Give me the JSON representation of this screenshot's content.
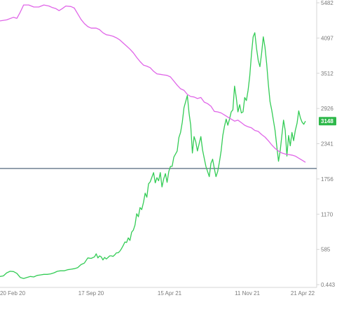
{
  "chart_data": {
    "type": "line",
    "title": "",
    "xlabel": "",
    "ylabel": "",
    "y_axis_position": "right",
    "ylim": [
      0.443,
      5482
    ],
    "y_ticks": [
      "5482",
      "4097",
      "3512",
      "2926",
      "2341",
      "1756",
      "1170",
      "585",
      "0.443"
    ],
    "x_ticks": [
      "20 Feb 20",
      "17 Sep 20",
      "15 Apr 21",
      "11 Nov 21",
      "21 Apr 22"
    ],
    "last_value_label": "3148",
    "reference_level": 2260,
    "colors": {
      "price_line": "#33cc55",
      "secondary_line": "#e066e8",
      "reference_line": "#6f8192",
      "badge": "#2eb84a",
      "axis": "#d6d6d6"
    },
    "series": [
      {
        "key": "price",
        "values": [
          [
            0,
            160
          ],
          [
            4,
            170
          ],
          [
            8,
            230
          ],
          [
            12,
            260
          ],
          [
            16,
            255
          ],
          [
            20,
            220
          ],
          [
            24,
            140
          ],
          [
            28,
            120
          ],
          [
            32,
            140
          ],
          [
            36,
            160
          ],
          [
            40,
            150
          ],
          [
            44,
            180
          ],
          [
            48,
            190
          ],
          [
            52,
            200
          ],
          [
            56,
            200
          ],
          [
            60,
            210
          ],
          [
            64,
            230
          ],
          [
            68,
            260
          ],
          [
            72,
            270
          ],
          [
            76,
            270
          ],
          [
            80,
            290
          ],
          [
            84,
            300
          ],
          [
            88,
            310
          ],
          [
            92,
            330
          ],
          [
            96,
            390
          ],
          [
            100,
            420
          ],
          [
            104,
            520
          ],
          [
            108,
            510
          ],
          [
            112,
            540
          ],
          [
            114,
            600
          ],
          [
            116,
            520
          ],
          [
            118,
            560
          ],
          [
            120,
            540
          ],
          [
            122,
            480
          ],
          [
            124,
            530
          ],
          [
            126,
            500
          ],
          [
            128,
            530
          ],
          [
            130,
            560
          ],
          [
            132,
            560
          ],
          [
            134,
            550
          ],
          [
            136,
            580
          ],
          [
            138,
            620
          ],
          [
            140,
            620
          ],
          [
            142,
            650
          ],
          [
            144,
            700
          ],
          [
            146,
            760
          ],
          [
            148,
            830
          ],
          [
            150,
            820
          ],
          [
            152,
            910
          ],
          [
            154,
            860
          ],
          [
            156,
            1020
          ],
          [
            158,
            1060
          ],
          [
            160,
            1160
          ],
          [
            162,
            1380
          ],
          [
            164,
            1320
          ],
          [
            166,
            1500
          ],
          [
            168,
            1460
          ],
          [
            170,
            1600
          ],
          [
            172,
            1780
          ],
          [
            174,
            1700
          ],
          [
            176,
            1960
          ],
          [
            178,
            2000
          ],
          [
            180,
            2090
          ],
          [
            182,
            2180
          ],
          [
            184,
            1980
          ],
          [
            186,
            2080
          ],
          [
            188,
            2020
          ],
          [
            190,
            2180
          ],
          [
            192,
            1900
          ],
          [
            194,
            2060
          ],
          [
            196,
            2160
          ],
          [
            198,
            1990
          ],
          [
            200,
            2200
          ],
          [
            202,
            2300
          ],
          [
            204,
            2300
          ],
          [
            206,
            2480
          ],
          [
            208,
            2540
          ],
          [
            210,
            2600
          ],
          [
            212,
            2860
          ],
          [
            214,
            2960
          ],
          [
            216,
            3160
          ],
          [
            218,
            3440
          ],
          [
            220,
            3560
          ],
          [
            222,
            3680
          ],
          [
            224,
            3340
          ],
          [
            226,
            3100
          ],
          [
            228,
            2560
          ],
          [
            230,
            2880
          ],
          [
            232,
            2780
          ],
          [
            234,
            2600
          ],
          [
            236,
            2740
          ],
          [
            238,
            2880
          ],
          [
            240,
            2620
          ],
          [
            242,
            2460
          ],
          [
            244,
            2300
          ],
          [
            246,
            2200
          ],
          [
            248,
            2100
          ],
          [
            250,
            2360
          ],
          [
            252,
            2440
          ],
          [
            254,
            2260
          ],
          [
            256,
            2100
          ],
          [
            258,
            2200
          ],
          [
            260,
            2380
          ],
          [
            262,
            2600
          ],
          [
            264,
            2900
          ],
          [
            266,
            3080
          ],
          [
            268,
            3220
          ],
          [
            270,
            3100
          ],
          [
            272,
            3220
          ],
          [
            274,
            3360
          ],
          [
            276,
            3400
          ],
          [
            278,
            3860
          ],
          [
            280,
            3640
          ],
          [
            282,
            3360
          ],
          [
            284,
            3500
          ],
          [
            286,
            3340
          ],
          [
            288,
            3360
          ],
          [
            290,
            3640
          ],
          [
            292,
            3580
          ],
          [
            294,
            3780
          ],
          [
            296,
            4060
          ],
          [
            298,
            4480
          ],
          [
            300,
            4820
          ],
          [
            302,
            4900
          ],
          [
            304,
            4600
          ],
          [
            306,
            4360
          ],
          [
            308,
            4240
          ],
          [
            310,
            4500
          ],
          [
            312,
            4820
          ],
          [
            314,
            4620
          ],
          [
            316,
            4300
          ],
          [
            318,
            3900
          ],
          [
            320,
            3560
          ],
          [
            322,
            3400
          ],
          [
            324,
            3200
          ],
          [
            326,
            3000
          ],
          [
            328,
            2700
          ],
          [
            330,
            2400
          ],
          [
            332,
            2600
          ],
          [
            334,
            2900
          ],
          [
            336,
            3200
          ],
          [
            338,
            3000
          ],
          [
            340,
            2500
          ],
          [
            342,
            2900
          ],
          [
            344,
            2700
          ],
          [
            346,
            2960
          ],
          [
            348,
            2800
          ],
          [
            350,
            3000
          ],
          [
            352,
            3140
          ],
          [
            354,
            3380
          ],
          [
            356,
            3240
          ],
          [
            358,
            3160
          ],
          [
            360,
            3120
          ],
          [
            362,
            3180
          ]
        ]
      },
      {
        "key": "secondary",
        "values": [
          [
            0,
            5130
          ],
          [
            8,
            5150
          ],
          [
            16,
            5200
          ],
          [
            20,
            5180
          ],
          [
            24,
            5300
          ],
          [
            28,
            5440
          ],
          [
            34,
            5440
          ],
          [
            40,
            5400
          ],
          [
            46,
            5400
          ],
          [
            52,
            5440
          ],
          [
            58,
            5420
          ],
          [
            62,
            5390
          ],
          [
            66,
            5370
          ],
          [
            70,
            5330
          ],
          [
            74,
            5370
          ],
          [
            78,
            5420
          ],
          [
            84,
            5410
          ],
          [
            88,
            5380
          ],
          [
            92,
            5270
          ],
          [
            96,
            5160
          ],
          [
            100,
            5080
          ],
          [
            104,
            5020
          ],
          [
            108,
            4990
          ],
          [
            114,
            4990
          ],
          [
            118,
            4960
          ],
          [
            122,
            4900
          ],
          [
            126,
            4860
          ],
          [
            130,
            4850
          ],
          [
            134,
            4830
          ],
          [
            138,
            4800
          ],
          [
            142,
            4760
          ],
          [
            146,
            4700
          ],
          [
            150,
            4640
          ],
          [
            154,
            4580
          ],
          [
            158,
            4510
          ],
          [
            162,
            4420
          ],
          [
            166,
            4340
          ],
          [
            170,
            4270
          ],
          [
            174,
            4250
          ],
          [
            178,
            4220
          ],
          [
            182,
            4150
          ],
          [
            186,
            4100
          ],
          [
            190,
            4090
          ],
          [
            194,
            4080
          ],
          [
            198,
            4070
          ],
          [
            202,
            4040
          ],
          [
            206,
            3960
          ],
          [
            210,
            3880
          ],
          [
            214,
            3810
          ],
          [
            218,
            3780
          ],
          [
            222,
            3700
          ],
          [
            226,
            3660
          ],
          [
            230,
            3650
          ],
          [
            234,
            3620
          ],
          [
            238,
            3640
          ],
          [
            242,
            3550
          ],
          [
            246,
            3520
          ],
          [
            250,
            3470
          ],
          [
            254,
            3370
          ],
          [
            258,
            3360
          ],
          [
            262,
            3340
          ],
          [
            266,
            3300
          ],
          [
            270,
            3260
          ],
          [
            274,
            3220
          ],
          [
            278,
            3180
          ],
          [
            282,
            3200
          ],
          [
            286,
            3150
          ],
          [
            290,
            3100
          ],
          [
            294,
            3070
          ],
          [
            298,
            3050
          ],
          [
            302,
            3000
          ],
          [
            306,
            2980
          ],
          [
            310,
            2920
          ],
          [
            314,
            2870
          ],
          [
            318,
            2800
          ],
          [
            322,
            2720
          ],
          [
            326,
            2650
          ],
          [
            330,
            2600
          ],
          [
            334,
            2560
          ],
          [
            338,
            2540
          ],
          [
            342,
            2530
          ],
          [
            346,
            2520
          ],
          [
            350,
            2500
          ],
          [
            354,
            2460
          ],
          [
            358,
            2420
          ],
          [
            362,
            2380
          ]
        ]
      }
    ]
  }
}
